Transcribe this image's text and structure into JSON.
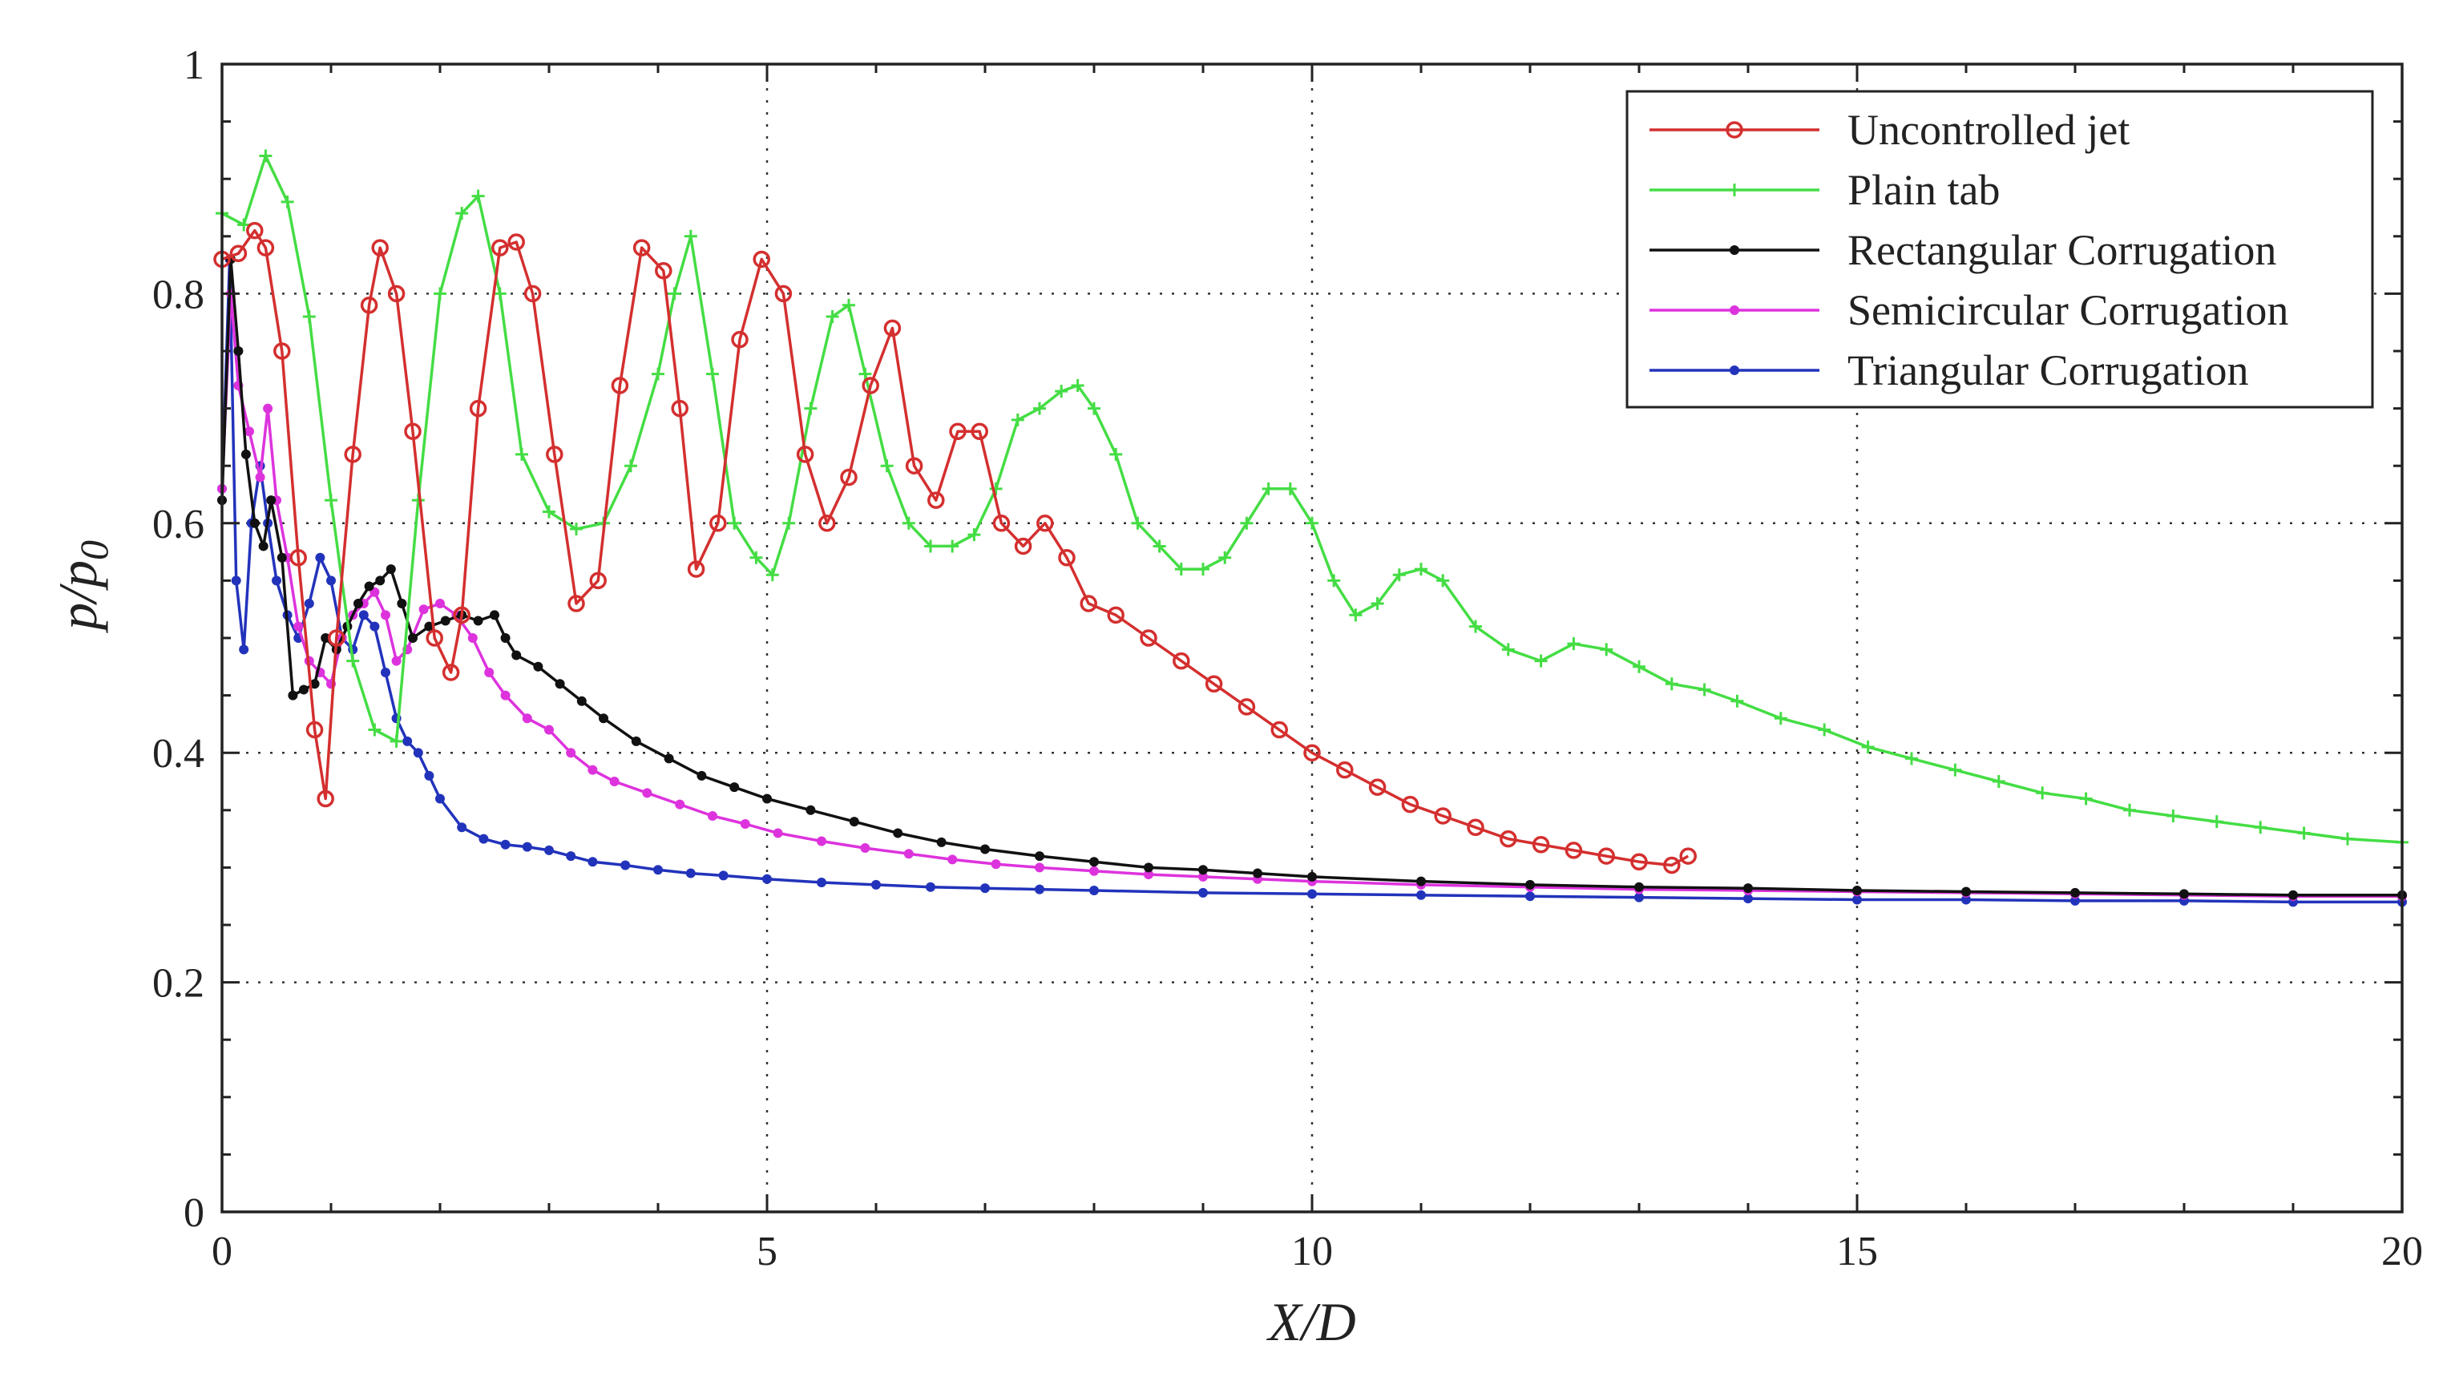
{
  "chart_data": {
    "type": "line",
    "title": "",
    "xlabel": "X/D",
    "ylabel_main": "p/p",
    "ylabel_sub": "0",
    "xlim": [
      0,
      20
    ],
    "ylim": [
      0,
      1
    ],
    "xticks": [
      "0",
      "5",
      "10",
      "15",
      "20"
    ],
    "yticks": [
      "0",
      "0.2",
      "0.4",
      "0.6",
      "0.8",
      "1"
    ],
    "grid": true,
    "legend_position": "top-right",
    "series": [
      {
        "name": "Uncontrolled jet",
        "color": "#d42f2f",
        "marker": "circle",
        "x": [
          0,
          0.15,
          0.3,
          0.4,
          0.55,
          0.7,
          0.85,
          0.95,
          1.05,
          1.2,
          1.35,
          1.45,
          1.6,
          1.75,
          1.95,
          2.1,
          2.2,
          2.35,
          2.55,
          2.7,
          2.85,
          3.05,
          3.25,
          3.45,
          3.65,
          3.85,
          4.05,
          4.2,
          4.35,
          4.55,
          4.75,
          4.95,
          5.15,
          5.35,
          5.55,
          5.75,
          5.95,
          6.15,
          6.35,
          6.55,
          6.75,
          6.95,
          7.15,
          7.35,
          7.55,
          7.75,
          7.95,
          8.2,
          8.5,
          8.8,
          9.1,
          9.4,
          9.7,
          10.0,
          10.3,
          10.6,
          10.9,
          11.2,
          11.5,
          11.8,
          12.1,
          12.4,
          12.7,
          13.0,
          13.3,
          13.45
        ],
        "y": [
          0.83,
          0.835,
          0.855,
          0.84,
          0.75,
          0.57,
          0.42,
          0.36,
          0.5,
          0.66,
          0.79,
          0.84,
          0.8,
          0.68,
          0.5,
          0.47,
          0.52,
          0.7,
          0.84,
          0.845,
          0.8,
          0.66,
          0.53,
          0.55,
          0.72,
          0.84,
          0.82,
          0.7,
          0.56,
          0.6,
          0.76,
          0.83,
          0.8,
          0.66,
          0.6,
          0.64,
          0.72,
          0.77,
          0.65,
          0.62,
          0.68,
          0.68,
          0.6,
          0.58,
          0.6,
          0.57,
          0.53,
          0.52,
          0.5,
          0.48,
          0.46,
          0.44,
          0.42,
          0.4,
          0.385,
          0.37,
          0.355,
          0.345,
          0.335,
          0.325,
          0.32,
          0.315,
          0.31,
          0.305,
          0.302,
          0.31
        ]
      },
      {
        "name": "Plain tab",
        "color": "#44dd44",
        "marker": "plus",
        "x": [
          0,
          0.2,
          0.4,
          0.6,
          0.8,
          1.0,
          1.2,
          1.4,
          1.6,
          1.8,
          2.0,
          2.2,
          2.35,
          2.55,
          2.75,
          3.0,
          3.25,
          3.5,
          3.75,
          4.0,
          4.15,
          4.3,
          4.5,
          4.7,
          4.9,
          5.05,
          5.2,
          5.4,
          5.6,
          5.75,
          5.9,
          6.1,
          6.3,
          6.5,
          6.7,
          6.9,
          7.1,
          7.3,
          7.5,
          7.7,
          7.85,
          8.0,
          8.2,
          8.4,
          8.6,
          8.8,
          9.0,
          9.2,
          9.4,
          9.6,
          9.8,
          10.0,
          10.2,
          10.4,
          10.6,
          10.8,
          11.0,
          11.2,
          11.5,
          11.8,
          12.1,
          12.4,
          12.7,
          13.0,
          13.3,
          13.6,
          13.9,
          14.3,
          14.7,
          15.1,
          15.5,
          15.9,
          16.3,
          16.7,
          17.1,
          17.5,
          17.9,
          18.3,
          18.7,
          19.1,
          19.5,
          20.0
        ],
        "y": [
          0.87,
          0.86,
          0.92,
          0.88,
          0.78,
          0.62,
          0.48,
          0.42,
          0.41,
          0.62,
          0.8,
          0.87,
          0.885,
          0.8,
          0.66,
          0.61,
          0.595,
          0.6,
          0.65,
          0.73,
          0.8,
          0.85,
          0.73,
          0.6,
          0.57,
          0.555,
          0.6,
          0.7,
          0.78,
          0.79,
          0.73,
          0.65,
          0.6,
          0.58,
          0.58,
          0.59,
          0.63,
          0.69,
          0.7,
          0.715,
          0.72,
          0.7,
          0.66,
          0.6,
          0.58,
          0.56,
          0.56,
          0.57,
          0.6,
          0.63,
          0.63,
          0.6,
          0.55,
          0.52,
          0.53,
          0.555,
          0.56,
          0.55,
          0.51,
          0.49,
          0.48,
          0.495,
          0.49,
          0.475,
          0.46,
          0.455,
          0.445,
          0.43,
          0.42,
          0.405,
          0.395,
          0.385,
          0.375,
          0.365,
          0.36,
          0.35,
          0.345,
          0.34,
          0.335,
          0.33,
          0.325,
          0.322
        ]
      },
      {
        "name": "Rectangular Corrugation",
        "color": "#111111",
        "marker": "dot",
        "x": [
          0,
          0.08,
          0.15,
          0.22,
          0.3,
          0.38,
          0.45,
          0.55,
          0.65,
          0.75,
          0.85,
          0.95,
          1.05,
          1.15,
          1.25,
          1.35,
          1.45,
          1.55,
          1.65,
          1.75,
          1.9,
          2.05,
          2.2,
          2.35,
          2.5,
          2.6,
          2.7,
          2.9,
          3.1,
          3.3,
          3.5,
          3.8,
          4.1,
          4.4,
          4.7,
          5.0,
          5.4,
          5.8,
          6.2,
          6.6,
          7.0,
          7.5,
          8.0,
          8.5,
          9.0,
          9.5,
          10.0,
          11.0,
          12.0,
          13.0,
          14.0,
          15.0,
          16.0,
          17.0,
          18.0,
          19.0,
          20.0
        ],
        "y": [
          0.62,
          0.83,
          0.75,
          0.66,
          0.6,
          0.58,
          0.62,
          0.57,
          0.45,
          0.455,
          0.46,
          0.5,
          0.49,
          0.51,
          0.53,
          0.545,
          0.55,
          0.56,
          0.53,
          0.5,
          0.51,
          0.515,
          0.52,
          0.515,
          0.52,
          0.5,
          0.485,
          0.475,
          0.46,
          0.445,
          0.43,
          0.41,
          0.395,
          0.38,
          0.37,
          0.36,
          0.35,
          0.34,
          0.33,
          0.322,
          0.316,
          0.31,
          0.305,
          0.3,
          0.298,
          0.295,
          0.292,
          0.288,
          0.285,
          0.283,
          0.282,
          0.28,
          0.279,
          0.278,
          0.277,
          0.276,
          0.276
        ]
      },
      {
        "name": "Semicircular Corrugation",
        "color": "#dd33dd",
        "marker": "dot",
        "x": [
          0,
          0.08,
          0.15,
          0.25,
          0.35,
          0.42,
          0.5,
          0.6,
          0.7,
          0.8,
          0.9,
          1.0,
          1.1,
          1.2,
          1.3,
          1.4,
          1.5,
          1.6,
          1.7,
          1.85,
          2.0,
          2.15,
          2.3,
          2.45,
          2.6,
          2.8,
          3.0,
          3.2,
          3.4,
          3.6,
          3.9,
          4.2,
          4.5,
          4.8,
          5.1,
          5.5,
          5.9,
          6.3,
          6.7,
          7.1,
          7.5,
          8.0,
          8.5,
          9.0,
          9.5,
          10.0,
          11.0,
          12.0,
          13.0,
          14.0,
          15.0,
          16.0,
          17.0,
          18.0,
          19.0,
          20.0
        ],
        "y": [
          0.63,
          0.8,
          0.72,
          0.68,
          0.64,
          0.7,
          0.62,
          0.57,
          0.51,
          0.48,
          0.47,
          0.46,
          0.5,
          0.52,
          0.53,
          0.54,
          0.52,
          0.48,
          0.49,
          0.525,
          0.53,
          0.52,
          0.5,
          0.47,
          0.45,
          0.43,
          0.42,
          0.4,
          0.385,
          0.375,
          0.365,
          0.355,
          0.345,
          0.338,
          0.33,
          0.323,
          0.317,
          0.312,
          0.307,
          0.303,
          0.3,
          0.297,
          0.294,
          0.292,
          0.29,
          0.288,
          0.285,
          0.283,
          0.281,
          0.28,
          0.279,
          0.278,
          0.277,
          0.276,
          0.275,
          0.275
        ]
      },
      {
        "name": "Triangular Corrugation",
        "color": "#2233bb",
        "marker": "dot",
        "x": [
          0,
          0.07,
          0.13,
          0.2,
          0.27,
          0.35,
          0.42,
          0.5,
          0.6,
          0.7,
          0.8,
          0.9,
          1.0,
          1.1,
          1.2,
          1.3,
          1.4,
          1.5,
          1.6,
          1.7,
          1.8,
          1.9,
          2.0,
          2.2,
          2.4,
          2.6,
          2.8,
          3.0,
          3.2,
          3.4,
          3.7,
          4.0,
          4.3,
          4.6,
          5.0,
          5.5,
          6.0,
          6.5,
          7.0,
          7.5,
          8.0,
          9.0,
          10.0,
          11.0,
          12.0,
          13.0,
          14.0,
          15.0,
          16.0,
          17.0,
          18.0,
          19.0,
          20.0
        ],
        "y": [
          0.63,
          0.83,
          0.55,
          0.49,
          0.6,
          0.65,
          0.6,
          0.55,
          0.52,
          0.5,
          0.53,
          0.57,
          0.55,
          0.5,
          0.49,
          0.52,
          0.51,
          0.47,
          0.43,
          0.41,
          0.4,
          0.38,
          0.36,
          0.335,
          0.325,
          0.32,
          0.318,
          0.315,
          0.31,
          0.305,
          0.302,
          0.298,
          0.295,
          0.293,
          0.29,
          0.287,
          0.285,
          0.283,
          0.282,
          0.281,
          0.28,
          0.278,
          0.277,
          0.276,
          0.275,
          0.274,
          0.273,
          0.272,
          0.272,
          0.271,
          0.271,
          0.27,
          0.27
        ]
      }
    ]
  }
}
